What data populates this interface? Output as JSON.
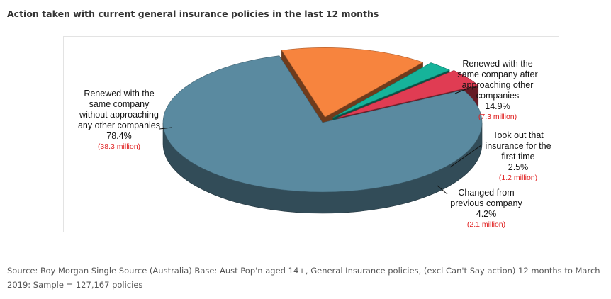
{
  "title": "Action taken with current general insurance policies in the last 12 months",
  "chart_data": {
    "type": "pie",
    "title": "Action taken with current general insurance policies in the last 12 months",
    "slices": [
      {
        "key": "renewed-without",
        "label_lines": [
          "Renewed with the",
          "same company",
          "without approaching",
          "any other companies"
        ],
        "percent_label": "78.4%",
        "value": 78.4,
        "millions_label": "(38.3 million)",
        "color": "#5a8aa0"
      },
      {
        "key": "renewed-after",
        "label_lines": [
          "Renewed with the",
          "same company after",
          "approaching other",
          "companies"
        ],
        "percent_label": "14.9%",
        "value": 14.9,
        "millions_label": "(7.3 million)",
        "color": "#f7843e"
      },
      {
        "key": "first-time",
        "label_lines": [
          "Took out that",
          "insurance for the",
          "first time"
        ],
        "percent_label": "2.5%",
        "value": 2.5,
        "millions_label": "(1.2 million)",
        "color": "#16b39a"
      },
      {
        "key": "changed",
        "label_lines": [
          "Changed from",
          "previous company"
        ],
        "percent_label": "4.2%",
        "value": 4.2,
        "millions_label": "(2.1 million)",
        "color": "#e03c53"
      }
    ]
  },
  "source_text": "Source: Roy Morgan Single Source (Australia) Base: Aust Pop'n aged 14+, General Insurance policies, (excl Can't Say action) 12 months to March 2019: Sample = 127,167 policies"
}
